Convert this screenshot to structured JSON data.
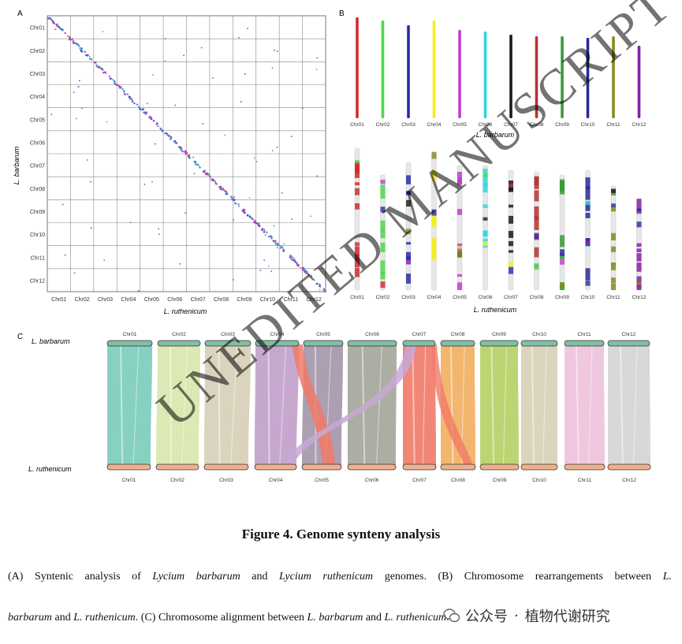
{
  "panelA": {
    "label": "A",
    "row_labels": [
      "Chr01",
      "Chr02",
      "Chr03",
      "Chr04",
      "Chr05",
      "Chr06",
      "Chr07",
      "Chr08",
      "Chr09",
      "Chr10",
      "Chr11",
      "Chr12"
    ],
    "col_labels": [
      "Chr01",
      "Chr02",
      "Chr03",
      "Chr04",
      "Chr05",
      "Chr06",
      "Chr07",
      "Chr08",
      "Chr09",
      "Chr10",
      "Chr11",
      "Chr12"
    ],
    "ylabel": "L. barbarum",
    "xlabel": "L. ruthenicum",
    "dot_colors": [
      "#3b6fb6",
      "#8e3fbf",
      "#36b3c6",
      "#d04aa8"
    ]
  },
  "panelB": {
    "label": "B",
    "top_labels": [
      "Chr01",
      "Chr02",
      "Chr03",
      "Chr04",
      "Chr05",
      "Chr06",
      "Chr07",
      "Chr08",
      "Chr09",
      "Chr10",
      "Chr11",
      "Chr12"
    ],
    "top_colors": [
      "#d02b2b",
      "#4cd94c",
      "#2a2aa8",
      "#f2ee22",
      "#c03ccf",
      "#2fd6dd",
      "#1a1a1a",
      "#b83232",
      "#3a9a3a",
      "#2a2a9a",
      "#8a8a1e",
      "#8a1ea8"
    ],
    "top_species": "L. barbarum",
    "bottom_labels": [
      "Chr01",
      "Chr02",
      "Chr03",
      "Chr04",
      "Chr05",
      "Chr06",
      "Chr07",
      "Chr08",
      "Chr09",
      "Chr10",
      "Chr11",
      "Chr12"
    ],
    "bottom_species": "L. ruthenicum"
  },
  "panelC": {
    "label": "C",
    "top_species": "L. barbarum",
    "bottom_species": "L. ruthenicum",
    "top_labels": [
      "Chr01",
      "Chr02",
      "Chr03",
      "Chr04",
      "Chr05",
      "Chr06",
      "Chr07",
      "Chr08",
      "Chr09",
      "Chr10",
      "Chr11",
      "Chr12"
    ],
    "bottom_labels": [
      "Chr01",
      "Chr02",
      "Chr03",
      "Chr04",
      "Chr05",
      "Chr06",
      "Chr07",
      "Chr08",
      "Chr09",
      "Chr10",
      "Chr11",
      "Chr12"
    ],
    "ribbon_colors": [
      "#7fcfbf",
      "#d9e8b0",
      "#d8d2ba",
      "#c3a3cc",
      "#a89aae",
      "#a8aa9e",
      "#f08070",
      "#f2b267",
      "#b7d36c",
      "#d8d3b8",
      "#eec4dc",
      "#d6d6d6"
    ],
    "top_bar_color": "#7fbfa6",
    "bottom_bar_color": "#f0b08c"
  },
  "caption": {
    "title": "Figure 4. Genome synteny analysis",
    "p1_a": "(A) Syntenic analysis of ",
    "p1_species1": "Lycium barbarum",
    "p1_b": " and ",
    "p1_species2": "Lycium ruthenicum",
    "p1_c": " genomes. (B) Chromosome rearrangements between ",
    "p1_d": "L.",
    "p2_a": "barbarum",
    "p2_b": " and ",
    "p2_c": "L. ruthenicum",
    "p2_d": ". (C) Chromosome alignment between ",
    "p2_e": "L. barbarum",
    "p2_f": " and ",
    "p2_g": "L. ruthenicum",
    "p2_h": "."
  },
  "watermark": "UNEDITED MANUSCRIPT",
  "wechat": {
    "label": "公众号",
    "dot": "·",
    "account": "植物代谢研究"
  }
}
